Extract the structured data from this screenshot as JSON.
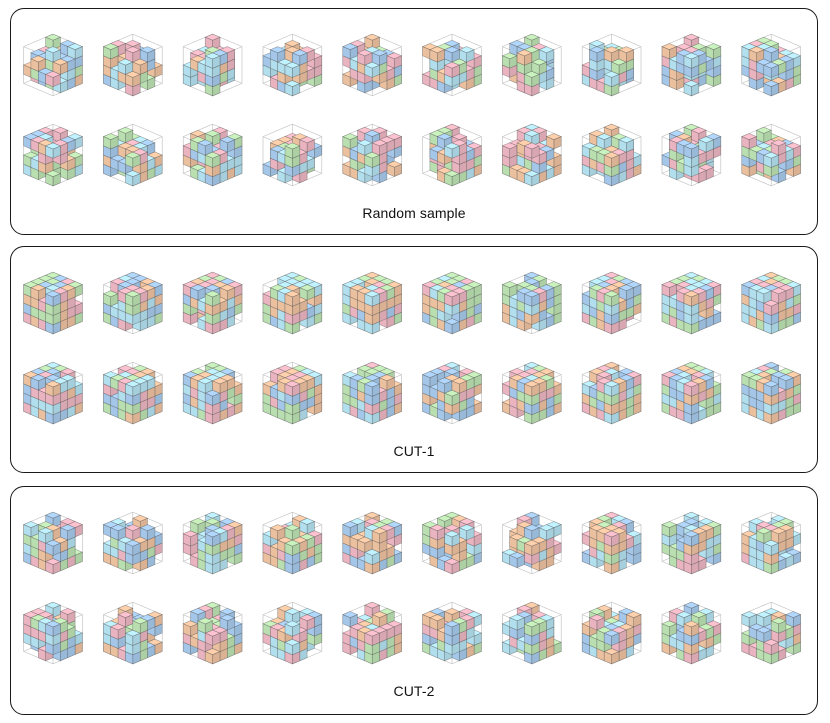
{
  "panels": [
    {
      "label": "Random sample",
      "style": "random"
    },
    {
      "label": "CUT-1",
      "style": "cut1"
    },
    {
      "label": "CUT-2",
      "style": "cut2"
    }
  ],
  "grid": {
    "rows": 2,
    "columns": 10,
    "cube_resolution": 4
  },
  "colors": {
    "orange": "#f2c6a3",
    "green": "#bfe6b5",
    "blue": "#a9cdf0",
    "pink": "#f0b9c6",
    "cyan": "#b7e6f4",
    "frame": "#bbbbbb",
    "edge": "#4d4d4d"
  }
}
